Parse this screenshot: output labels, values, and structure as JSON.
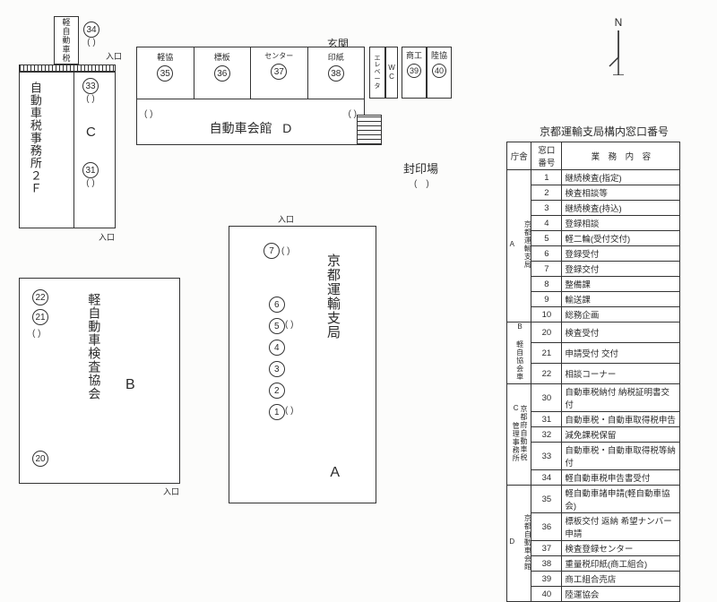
{
  "title_table": "京都運輸支局構内窓口番号",
  "compass_label": "N",
  "labels": {
    "entrance": "玄関",
    "entry": "入口",
    "fuuin": "封印場",
    "elevator": "エ\nレ\nベ\nー\nタ",
    "wc": "W\nC"
  },
  "buildingA": {
    "name": "京都運輸支局",
    "letter": "A",
    "numbers": [
      "1",
      "2",
      "3",
      "4",
      "5",
      "6",
      "7"
    ]
  },
  "buildingB": {
    "name": "軽自動車検査協会",
    "letter": "B",
    "numbers_top": [
      "22",
      "21"
    ],
    "numbers_bottom": [
      "20"
    ]
  },
  "buildingC": {
    "name_left": "自動車税事務所２Ｆ",
    "top_small": "軽自動車税",
    "letter": "C",
    "n34": "34",
    "n33": "33",
    "n31": "31"
  },
  "buildingD": {
    "name": "自動車会館",
    "letter": "D",
    "cols": [
      {
        "label": "軽協",
        "num": "35"
      },
      {
        "label": "標板",
        "num": "36"
      },
      {
        "label": "センター",
        "num": "37"
      },
      {
        "label": "印紙",
        "num": "38"
      }
    ],
    "right": [
      {
        "label": "商工",
        "num": "39"
      },
      {
        "label": "陸協",
        "num": "40"
      }
    ]
  },
  "table": {
    "headers": [
      "庁舎",
      "窓口番号",
      "業　務　内　容"
    ],
    "groups": [
      {
        "label": "京都運輸支局\n\nA",
        "rows": [
          {
            "n": "1",
            "d": "継続検査(指定)"
          },
          {
            "n": "2",
            "d": "検査相談等"
          },
          {
            "n": "3",
            "d": "継続検査(持込)"
          },
          {
            "n": "4",
            "d": "登録相談"
          },
          {
            "n": "5",
            "d": "軽二輪(受付交付)"
          },
          {
            "n": "6",
            "d": "登録受付"
          },
          {
            "n": "7",
            "d": "登録交付"
          },
          {
            "n": "8",
            "d": "整備課"
          },
          {
            "n": "9",
            "d": "輸送課"
          },
          {
            "n": "10",
            "d": "総務企画"
          }
        ]
      },
      {
        "label": "B 軽自協会車",
        "rows": [
          {
            "n": "20",
            "d": "検査受付"
          },
          {
            "n": "21",
            "d": "申請受付 交付"
          },
          {
            "n": "22",
            "d": "相談コーナー"
          }
        ]
      },
      {
        "label": "京都府自動車税\nC 管理事務所",
        "rows": [
          {
            "n": "30",
            "d": "自動車税納付 納税証明書交付"
          },
          {
            "n": "31",
            "d": "自動車税・自動車取得税申告"
          },
          {
            "n": "32",
            "d": "減免課税保留"
          },
          {
            "n": "33",
            "d": "自動車税・自動車取得税等納付"
          },
          {
            "n": "34",
            "d": "軽自動車税申告書受付"
          }
        ]
      },
      {
        "label": "京都自動車会館\n\nD",
        "rows": [
          {
            "n": "35",
            "d": "軽自動車諸申請(軽自動車協会)"
          },
          {
            "n": "36",
            "d": "標板交付 返納 希望ナンバー申請"
          },
          {
            "n": "37",
            "d": "検査登録センター"
          },
          {
            "n": "38",
            "d": "重量税印紙(商工組合)"
          },
          {
            "n": "39",
            "d": "商工組合売店"
          },
          {
            "n": "40",
            "d": "陸運協会"
          }
        ]
      }
    ]
  }
}
